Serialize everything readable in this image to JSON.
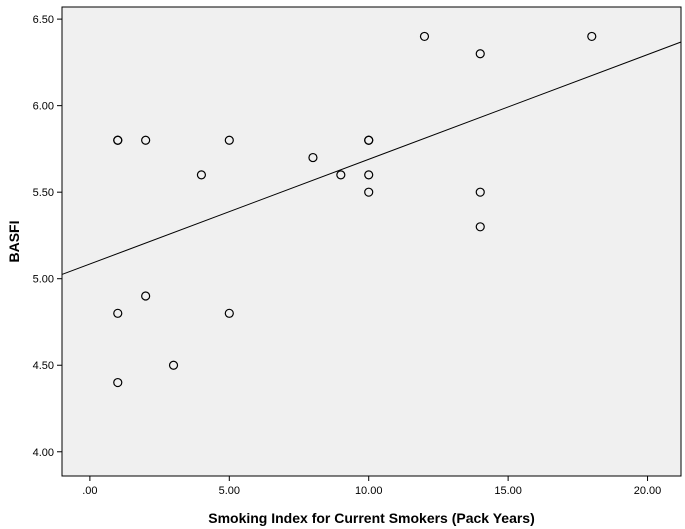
{
  "chart_data": {
    "type": "scatter",
    "title": "",
    "xlabel": "Smoking Index for Current Smokers (Pack Years)",
    "ylabel": "BASFI",
    "xlim": [
      -1,
      21.2
    ],
    "ylim": [
      3.86,
      6.57
    ],
    "x_ticks": [
      0,
      5,
      10,
      15,
      20
    ],
    "x_tick_labels": [
      ".00",
      "5.00",
      "10.00",
      "15.00",
      "20.00"
    ],
    "y_ticks": [
      4.0,
      4.5,
      5.0,
      5.5,
      6.0,
      6.5
    ],
    "y_tick_labels": [
      "4.00",
      "4.50",
      "5.00",
      "5.50",
      "6.00",
      "6.50"
    ],
    "grid": false,
    "series": [
      {
        "points": [
          {
            "x": 1,
            "y": 5.8
          },
          {
            "x": 1,
            "y": 5.8
          },
          {
            "x": 2,
            "y": 5.8
          },
          {
            "x": 5,
            "y": 5.8
          },
          {
            "x": 4,
            "y": 5.6
          },
          {
            "x": 8,
            "y": 5.7
          },
          {
            "x": 9,
            "y": 5.6
          },
          {
            "x": 10,
            "y": 5.8
          },
          {
            "x": 10,
            "y": 5.8
          },
          {
            "x": 10,
            "y": 5.6
          },
          {
            "x": 10,
            "y": 5.5
          },
          {
            "x": 12,
            "y": 6.4
          },
          {
            "x": 14,
            "y": 6.3
          },
          {
            "x": 18,
            "y": 6.4
          },
          {
            "x": 14,
            "y": 5.5
          },
          {
            "x": 14,
            "y": 5.3
          },
          {
            "x": 1,
            "y": 4.8
          },
          {
            "x": 2,
            "y": 4.9
          },
          {
            "x": 5,
            "y": 4.8
          },
          {
            "x": 3,
            "y": 4.5
          },
          {
            "x": 1,
            "y": 4.4
          }
        ]
      }
    ],
    "fit_line": {
      "type": "linear",
      "intercept": 5.085,
      "slope": 0.0605
    },
    "colors": {
      "plot_background": "#f0f0f0",
      "marker_stroke": "#000000",
      "line": "#000000"
    }
  }
}
